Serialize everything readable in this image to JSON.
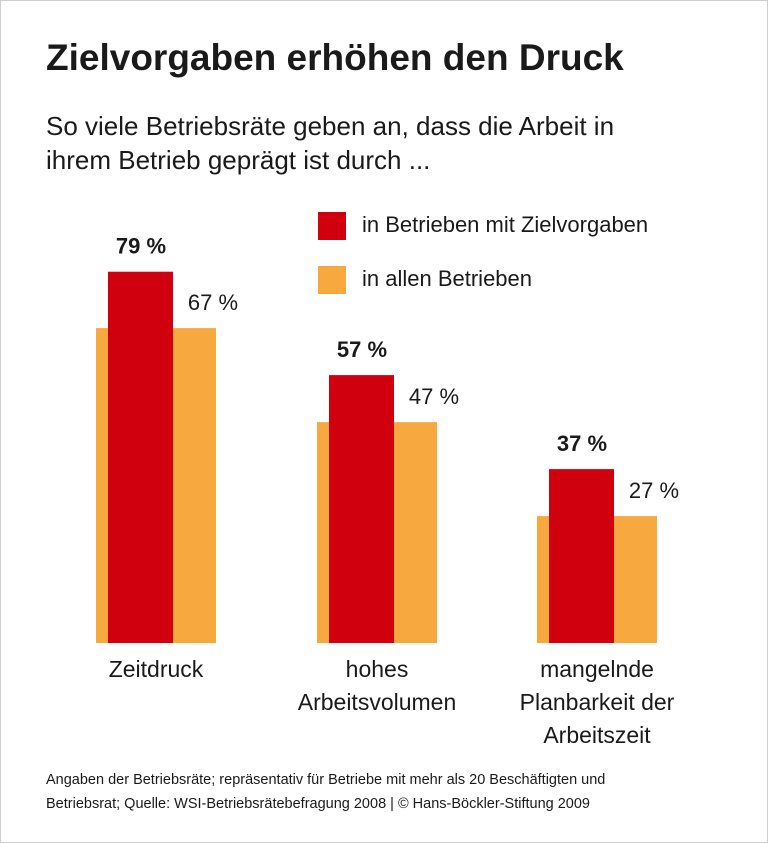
{
  "chart_data": {
    "type": "bar",
    "title": "Zielvorgaben erhöhen den Druck",
    "subtitle": [
      "So viele Betriebsräte geben an, dass die Arbeit in",
      "ihrem Betrieb geprägt ist durch ..."
    ],
    "categories": [
      "Zeitdruck",
      "hohes\nArbeitsvolumen",
      "mangelnde\nPlanbarkeit der\nArbeitszeit"
    ],
    "series": [
      {
        "name": "in Betrieben mit Zielvorgaben",
        "color": "#d0000f",
        "values": [
          79,
          57,
          37
        ],
        "value_labels": [
          "79 %",
          "57 %",
          "37 %"
        ]
      },
      {
        "name": "in allen Betrieben",
        "color": "#f7a940",
        "values": [
          67,
          47,
          27
        ],
        "value_labels": [
          "67 %",
          "47 %",
          "27 %"
        ]
      }
    ],
    "ylim": [
      0,
      100
    ],
    "footnote": [
      "Angaben der Betriebsräte; repräsentativ für Betriebe mit mehr als 20 Beschäftigten und",
      "Betriebsrat; Quelle: WSI-Betriebsrätebefragung 2008 | © Hans-Böckler-Stiftung 2009"
    ]
  }
}
